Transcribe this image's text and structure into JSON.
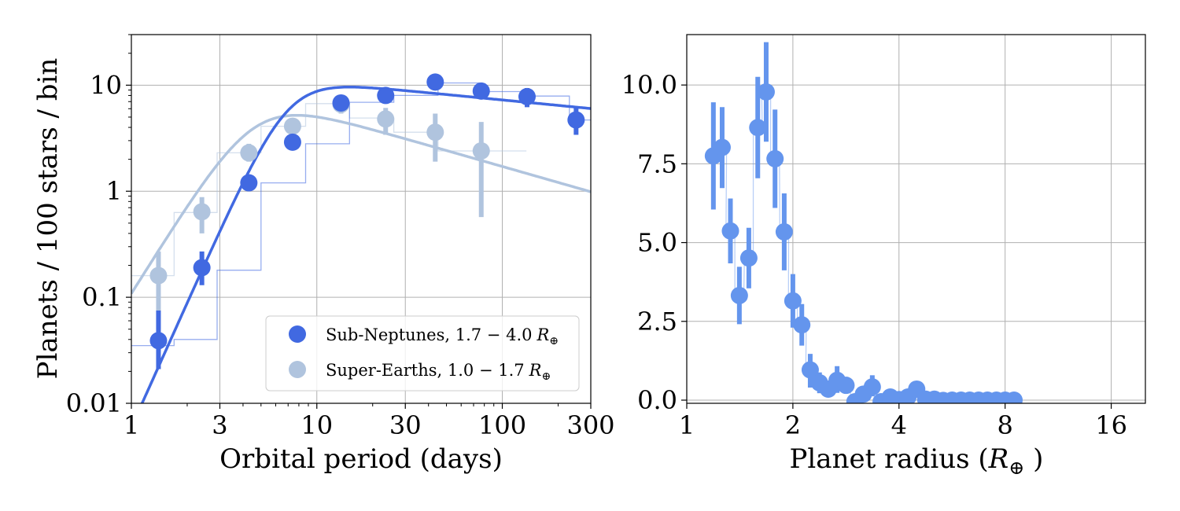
{
  "colors": {
    "sub_neptunes": "#4169e1",
    "super_earths": "#b0c4de",
    "radius": "#6495ed"
  },
  "chart_data": [
    {
      "type": "scatter",
      "xscale": "log",
      "yscale": "log",
      "xlim": [
        1,
        300
      ],
      "ylim": [
        0.01,
        30
      ],
      "xlabel": "Orbital period (days)",
      "ylabel": "Planets / 100 stars / bin",
      "xtick_values": [
        1,
        3,
        10,
        30,
        100,
        300
      ],
      "xtick_labels": [
        "1",
        "3",
        "10",
        "30",
        "100",
        "300"
      ],
      "ytick_values": [
        0.01,
        0.1,
        1,
        10
      ],
      "ytick_labels": [
        "0.01",
        "0.1",
        "1",
        "10"
      ],
      "grid": true,
      "legend_position": "lower-right",
      "series": [
        {
          "name": "Sub-Neptunes",
          "label_text": "Sub-Neptunes, 1.7 − 4.0 R⊕",
          "legend_main": "Sub-Neptunes, 1.7 − 4.0",
          "x": [
            1.4,
            2.4,
            4.3,
            7.4,
            13.5,
            23.5,
            43.5,
            77,
            136,
            250
          ],
          "y": [
            0.039,
            0.19,
            1.2,
            2.9,
            6.8,
            8.0,
            10.7,
            8.8,
            7.8,
            4.7
          ],
          "err_low": [
            0.021,
            0.13,
            1.1,
            2.6,
            6.0,
            7.1,
            9.9,
            8.0,
            6.2,
            3.4
          ],
          "err_high": [
            0.075,
            0.27,
            1.3,
            3.2,
            7.5,
            8.9,
            11.5,
            9.6,
            9.4,
            6.2
          ],
          "hist_edges": [
            1,
            1.7,
            2.9,
            5,
            8.7,
            15,
            26,
            45,
            78,
            135,
            230,
            300
          ],
          "hist_values": [
            0.035,
            0.04,
            0.18,
            1.2,
            2.8,
            6.9,
            8.0,
            10.5,
            8.7,
            7.9,
            4.7
          ],
          "fit": {
            "peak": 9.6,
            "p0": 15.0,
            "alpha": 3.9,
            "beta": -0.17
          }
        },
        {
          "name": "Super-Earths",
          "label_text": "Super-Earths, 1.0 − 1.7 R⊕",
          "legend_main": "Super-Earths, 1.0 − 1.7",
          "x": [
            1.4,
            2.4,
            4.3,
            7.4,
            13.5,
            23.5,
            43.5,
            77
          ],
          "y": [
            0.16,
            0.64,
            2.3,
            4.1,
            6.6,
            4.8,
            3.6,
            2.4
          ],
          "err_low": [
            0.05,
            0.4,
            1.9,
            3.7,
            5.4,
            3.4,
            1.9,
            0.57
          ],
          "err_high": [
            0.27,
            0.88,
            2.8,
            4.6,
            7.7,
            6.1,
            5.4,
            4.5
          ],
          "hist_edges": [
            1,
            1.7,
            2.9,
            5,
            8.7,
            15,
            26,
            45,
            78,
            135
          ],
          "hist_values": [
            0.16,
            0.63,
            2.3,
            4.1,
            6.7,
            4.9,
            3.6,
            2.4,
            2.4
          ],
          "fit": {
            "peak": 5.2,
            "p0": 7.8,
            "alpha": 2.8,
            "beta": -0.5
          }
        }
      ]
    },
    {
      "type": "scatter",
      "xscale": "log",
      "yscale": "linear",
      "xlim": [
        1,
        20
      ],
      "ylim": [
        -0.1,
        11.6
      ],
      "xlabel": "Planet radius (R⊕ )",
      "xlabel_main": "Planet radius (",
      "xlabel_end": ")",
      "ytick_values": [
        0,
        2.5,
        5,
        7.5,
        10
      ],
      "ytick_labels": [
        "0.0",
        "2.5",
        "5.0",
        "7.5",
        "10.0"
      ],
      "xtick_values": [
        1,
        2,
        4,
        8,
        16
      ],
      "xtick_labels": [
        "1",
        "2",
        "4",
        "8",
        "16"
      ],
      "grid": true,
      "series": [
        {
          "name": "Occurrence by radius",
          "x": [
            1.19,
            1.26,
            1.33,
            1.41,
            1.5,
            1.59,
            1.68,
            1.78,
            1.89,
            2.0,
            2.12,
            2.24,
            2.38,
            2.52,
            2.67,
            2.83,
            3.0,
            3.17,
            3.36,
            3.56,
            3.78,
            4.0,
            4.24,
            4.49,
            4.76,
            5.04,
            5.34,
            5.66,
            6.0,
            6.35,
            6.73,
            7.13,
            7.56,
            8.0,
            8.48
          ],
          "y": [
            7.75,
            8.02,
            5.37,
            3.32,
            4.51,
            8.65,
            9.78,
            7.66,
            5.34,
            3.15,
            2.39,
            0.96,
            0.55,
            0.35,
            0.63,
            0.47,
            -0.05,
            0.19,
            0.42,
            -0.05,
            0.1,
            0.02,
            0.1,
            0.35,
            0.03,
            0.03,
            -0.01,
            0.0,
            0.0,
            0.0,
            0.0,
            0.0,
            0.0,
            0.0,
            0.0
          ],
          "err_low": [
            6.05,
            6.73,
            4.34,
            2.41,
            3.55,
            7.04,
            8.2,
            6.1,
            4.12,
            2.3,
            1.73,
            0.4,
            0.22,
            0.13,
            0.23,
            0.27,
            -0.05,
            0.05,
            0.12,
            -0.05,
            0.0,
            0.0,
            0.0,
            0.1,
            0.0,
            0.0,
            -0.01,
            0.0,
            0.0,
            0.0,
            0.0,
            0.0,
            0.0,
            0.0,
            0.0
          ],
          "err_high": [
            9.45,
            9.3,
            6.4,
            4.23,
            5.47,
            10.26,
            11.36,
            9.22,
            6.56,
            4.0,
            3.05,
            1.47,
            0.88,
            0.6,
            1.08,
            0.74,
            -0.05,
            0.36,
            0.79,
            -0.05,
            0.2,
            0.04,
            0.2,
            0.6,
            0.06,
            0.06,
            -0.01,
            0.0,
            0.0,
            0.0,
            0.0,
            0.0,
            0.0,
            0.0,
            0.0
          ]
        }
      ]
    }
  ]
}
